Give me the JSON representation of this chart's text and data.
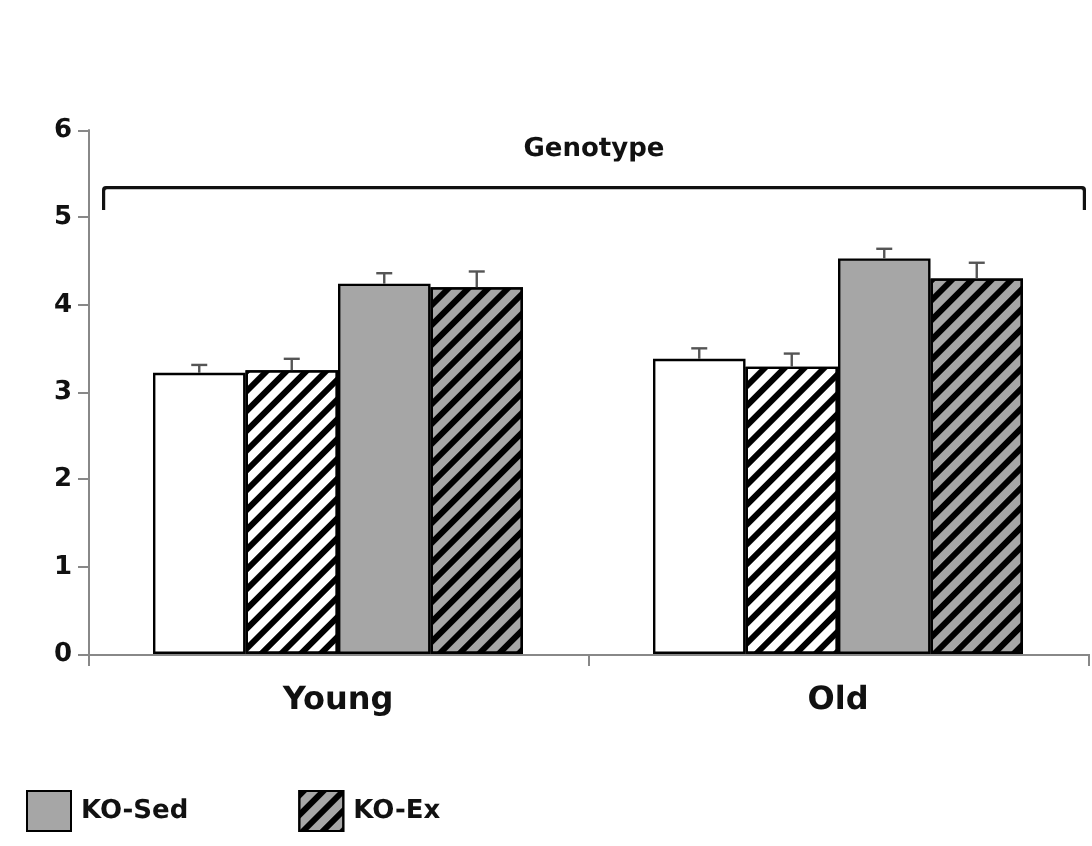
{
  "chart_data": {
    "type": "bar",
    "categories": [
      "Young",
      "Old"
    ],
    "series": [
      {
        "color": "#ffffff",
        "values": [
          3.22,
          3.38
        ],
        "errors": [
          [
            3.22,
            3.31
          ],
          [
            3.38,
            3.5
          ]
        ]
      },
      {
        "color": "#ffffff",
        "values": [
          3.25,
          3.29
        ],
        "errors": [
          [
            3.25,
            3.38
          ],
          [
            3.29,
            3.44
          ]
        ]
      },
      {
        "name": "KO-Sed",
        "color": "#a6a6a6",
        "values": [
          4.24,
          4.53
        ],
        "errors": [
          [
            4.24,
            4.36
          ],
          [
            4.53,
            4.64
          ]
        ]
      },
      {
        "name": "KO-Ex",
        "color": "#a6a6a6",
        "values": [
          4.2,
          4.3
        ],
        "errors": [
          [
            4.2,
            4.38
          ],
          [
            4.3,
            4.48
          ]
        ]
      }
    ],
    "annotations": [
      "Genotype"
    ],
    "ylim": [
      0,
      6
    ],
    "yticks": [
      0,
      1,
      2,
      3,
      4,
      5,
      6
    ],
    "grid": false,
    "legend": "bottom left"
  }
}
